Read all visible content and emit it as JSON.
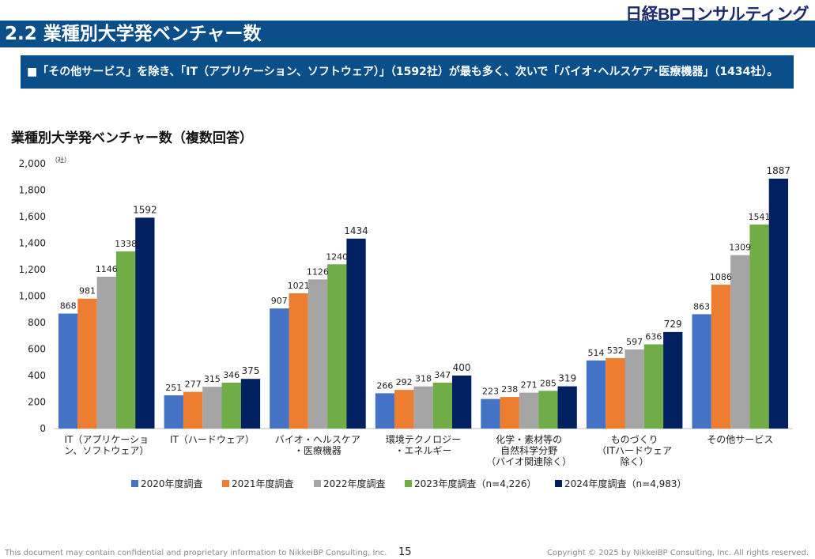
{
  "header": {
    "logo_text": "日経BPコンサルティング",
    "title": "2.2 業種別大学発ベンチャー数",
    "summary": "■「その他サービス」を除き、「IT（アプリケーション、ソフトウェア）」（1592社）が最も多く、次いで「バイオ･ヘルスケア･医療機器」（1434社）。"
  },
  "chart_data": {
    "type": "bar",
    "title": "業種別大学発ベンチャー数（複数回答）",
    "yunit": "（社）",
    "ylim": [
      0,
      2000
    ],
    "yticks": [
      0,
      200,
      400,
      600,
      800,
      1000,
      1200,
      1400,
      1600,
      1800,
      2000
    ],
    "ytick_labels": [
      "0",
      "200",
      "400",
      "600",
      "800",
      "1,000",
      "1,200",
      "1,400",
      "1,600",
      "1,800",
      "2,000"
    ],
    "grid": false,
    "legend_position": "bottom",
    "categories": [
      [
        "IT（アプリケーショ",
        "ン、ソフトウェア）"
      ],
      [
        "IT（ハードウェア）"
      ],
      [
        "バイオ・ヘルスケア",
        "・医療機器"
      ],
      [
        "環境テクノロジー",
        "・エネルギー"
      ],
      [
        "化学・素材等の",
        "自然科学分野",
        "（バイオ関連除く）"
      ],
      [
        "ものづくり",
        "（ITハードウェア",
        "除く）"
      ],
      [
        "その他サービス"
      ]
    ],
    "series": [
      {
        "name": "2020年度調査",
        "color": "#4472c4",
        "values": [
          868,
          251,
          907,
          266,
          223,
          514,
          863
        ]
      },
      {
        "name": "2021年度調査",
        "color": "#ed7d31",
        "values": [
          981,
          277,
          1021,
          292,
          238,
          532,
          1086
        ]
      },
      {
        "name": "2022年度調査",
        "color": "#a5a5a5",
        "values": [
          1146,
          315,
          1126,
          318,
          271,
          597,
          1309
        ]
      },
      {
        "name": "2023年度調査（n=4,226）",
        "color": "#70ad47",
        "values": [
          1338,
          346,
          1240,
          347,
          285,
          636,
          1541
        ]
      },
      {
        "name": "2024年度調査（n=4,983）",
        "color": "#002060",
        "values": [
          1592,
          375,
          1434,
          400,
          319,
          729,
          1887
        ]
      }
    ]
  },
  "footer": {
    "left": "This document may contain confidential and proprietary information to NikkeiBP Consulting, Inc.",
    "page": "15",
    "right": "Copyright © 2025 by NikkeiBP Consulting, Inc. All rights reserved."
  }
}
